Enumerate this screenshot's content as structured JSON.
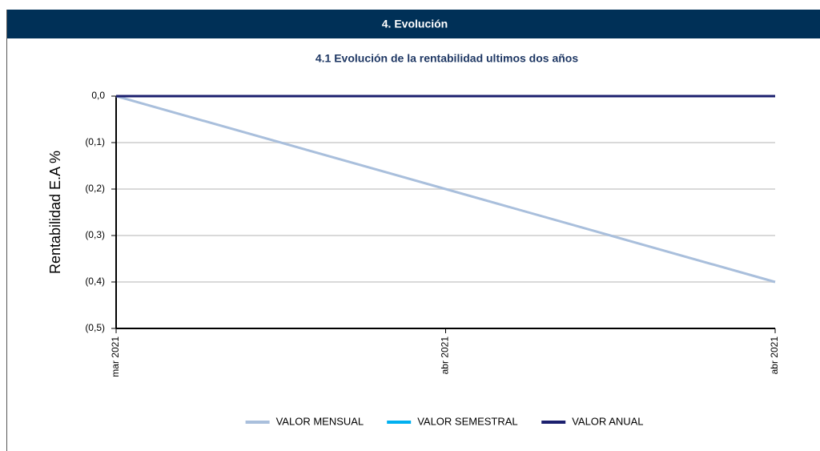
{
  "header": {
    "title": "4. Evolución"
  },
  "chart_data": {
    "type": "line",
    "title": "4.1 Evolución  de la rentabilidad ultimos dos años",
    "y_label": "Rentabilidad E.A %",
    "categories": [
      "mar 2021",
      "abr 2021",
      "abr 2021"
    ],
    "series": [
      {
        "name": "VALOR MENSUAL",
        "color": "#a9bfdc",
        "values": [
          0,
          -0.2,
          -0.4
        ]
      },
      {
        "name": "VALOR SEMESTRAL",
        "color": "#00b0f0",
        "values": [
          0,
          0,
          0
        ]
      },
      {
        "name": "VALOR ANUAL",
        "color": "#1b1f6e",
        "values": [
          0,
          0,
          0
        ]
      }
    ],
    "ylim": [
      -0.5,
      0
    ],
    "yticks": [
      {
        "value": 0,
        "label": "0,0"
      },
      {
        "value": -0.1,
        "label": "(0,1)"
      },
      {
        "value": -0.2,
        "label": "(0,2)"
      },
      {
        "value": -0.3,
        "label": "(0,3)"
      },
      {
        "value": -0.4,
        "label": "(0,4)"
      },
      {
        "value": -0.5,
        "label": "(0,5)"
      }
    ],
    "grid": true,
    "legend": "bottom"
  }
}
